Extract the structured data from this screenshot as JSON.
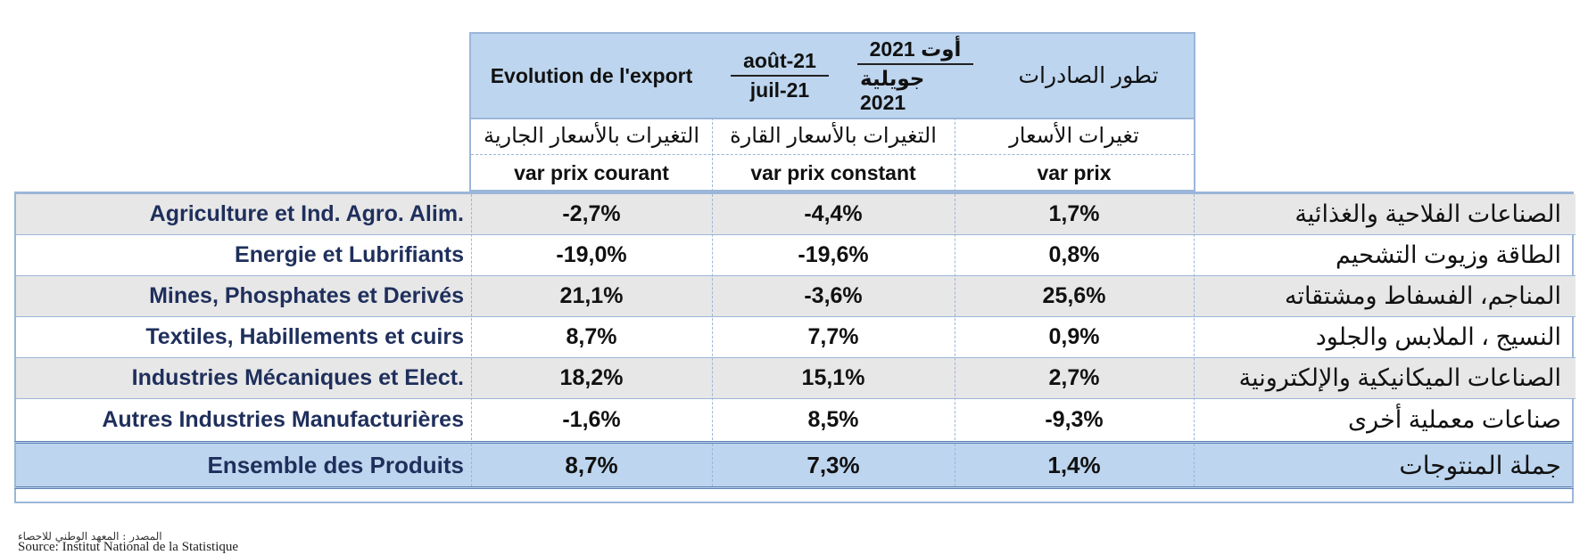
{
  "header": {
    "evolution_fr": "Evolution de l'export",
    "period_fr": {
      "numerator": "août-21",
      "denominator": "juil-21"
    },
    "period_ar": {
      "numerator": "أوت 2021",
      "denominator": "جويلية 2021"
    },
    "evolution_ar": "تطور الصادرات",
    "columns": [
      {
        "ar": "التغيرات بالأسعار الجارية",
        "fr": "var prix courant"
      },
      {
        "ar": "التغيرات بالأسعار القارة",
        "fr": "var prix constant"
      },
      {
        "ar": "تغيرات الأسعار",
        "fr": "var prix"
      }
    ]
  },
  "rows": [
    {
      "fr": "Agriculture et Ind. Agro. Alim.",
      "courant": "-2,7%",
      "constant": "-4,4%",
      "prix": "1,7%",
      "ar": "الصناعات الفلاحية والغذائية"
    },
    {
      "fr": "Energie et Lubrifiants",
      "courant": "-19,0%",
      "constant": "-19,6%",
      "prix": "0,8%",
      "ar": "الطاقة وزيوت التشحيم"
    },
    {
      "fr": "Mines, Phosphates et Derivés",
      "courant": "21,1%",
      "constant": "-3,6%",
      "prix": "25,6%",
      "ar": "المناجم، الفسفاط ومشتقاته"
    },
    {
      "fr": "Textiles, Habillements et cuirs",
      "courant": "8,7%",
      "constant": "7,7%",
      "prix": "0,9%",
      "ar": "النسيج ، الملابس والجلود"
    },
    {
      "fr": "Industries Mécaniques et Elect.",
      "courant": "18,2%",
      "constant": "15,1%",
      "prix": "2,7%",
      "ar": "الصناعات الميكانيكية والإلكترونية"
    },
    {
      "fr": "Autres Industries Manufacturières",
      "courant": "-1,6%",
      "constant": "8,5%",
      "prix": "-9,3%",
      "ar": "صناعات معملية أخرى"
    }
  ],
  "total": {
    "fr": "Ensemble des Produits",
    "courant": "8,7%",
    "constant": "7,3%",
    "prix": "1,4%",
    "ar": "جملة المنتوجات"
  },
  "source": {
    "ar": "المصدر : المعهد الوطني للاحصاء",
    "fr": "Source: Institut National de la Statistique"
  }
}
